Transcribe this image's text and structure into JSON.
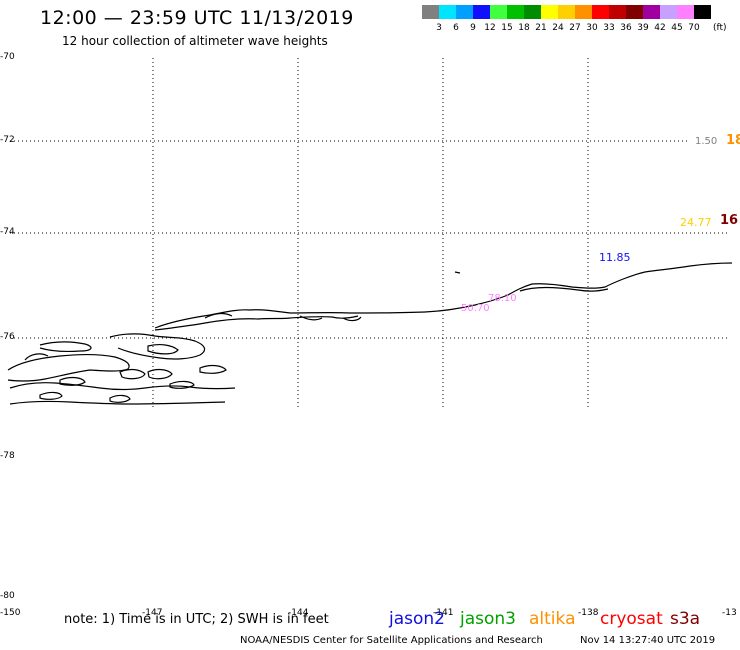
{
  "header": {
    "title": "12:00 — 23:59 UTC 11/13/2019",
    "subtitle": "12 hour collection of altimeter wave heights"
  },
  "legend": {
    "unit": "(ft)",
    "items": [
      {
        "label": "3",
        "color": "#808080"
      },
      {
        "label": "6",
        "color": "#00e5ff"
      },
      {
        "label": "9",
        "color": "#00a0ff"
      },
      {
        "label": "12",
        "color": "#1010ff"
      },
      {
        "label": "15",
        "color": "#40ff40"
      },
      {
        "label": "18",
        "color": "#00c000"
      },
      {
        "label": "21",
        "color": "#008c00"
      },
      {
        "label": "24",
        "color": "#ffff00"
      },
      {
        "label": "27",
        "color": "#ffd000"
      },
      {
        "label": "30",
        "color": "#ff9000"
      },
      {
        "label": "33",
        "color": "#ff0000"
      },
      {
        "label": "36",
        "color": "#c00000"
      },
      {
        "label": "39",
        "color": "#800000"
      },
      {
        "label": "42",
        "color": "#a000a0"
      },
      {
        "label": "45",
        "color": "#c8a0ff"
      },
      {
        "label": "70",
        "color": "#ff80ff"
      },
      {
        "label": "",
        "color": "#000000"
      }
    ]
  },
  "map": {
    "lat_labels": [
      "-70",
      "-72",
      "-74",
      "-76",
      "-78",
      "-80"
    ],
    "lon_labels": [
      "-150",
      "-147",
      "-144",
      "-141",
      "-138",
      "-13"
    ]
  },
  "observations": [
    {
      "text": "1.50",
      "color": "#808080"
    },
    {
      "text": "18",
      "color": "#ff9000"
    },
    {
      "text": "24.77",
      "color": "#ffd000"
    },
    {
      "text": "16",
      "color": "#800000"
    },
    {
      "text": "11.85",
      "color": "#1010ff"
    },
    {
      "text": "78.10",
      "color": "#ff80ff"
    },
    {
      "text": "50.70",
      "color": "#ff80ff"
    }
  ],
  "footer": {
    "note": "note: 1) Time is in UTC; 2) SWH is in feet",
    "satellites": [
      {
        "name": "jason2",
        "color": "#1010e0"
      },
      {
        "name": "jason3",
        "color": "#00a000"
      },
      {
        "name": "altika",
        "color": "#ff9000"
      },
      {
        "name": "cryosat",
        "color": "#ff0000"
      },
      {
        "name": "s3a",
        "color": "#800000"
      }
    ],
    "credit": "NOAA/NESDIS Center for Satellite Applications and Research",
    "timestamp": "Nov 14 13:27:40 UTC 2019"
  }
}
